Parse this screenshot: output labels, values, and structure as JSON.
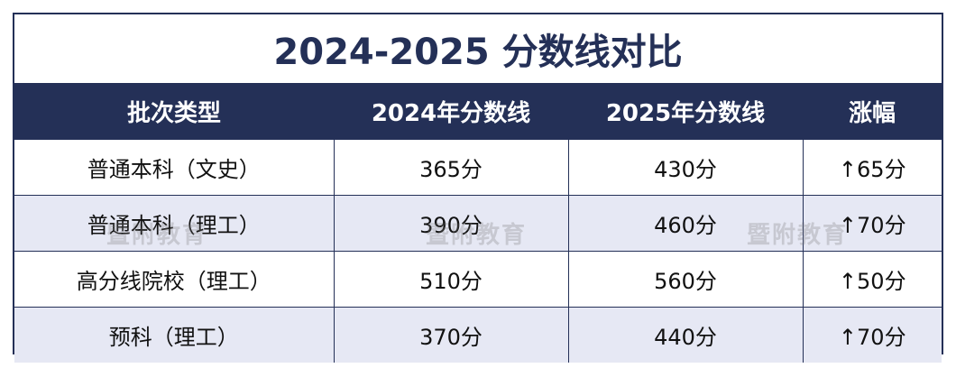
{
  "table": {
    "title": "2024-2025 分数线对比",
    "header": [
      "批次类型",
      "2024年分数线",
      "2025年分数线",
      "涨幅"
    ],
    "rows": [
      [
        "普通本科（文史）",
        "365分",
        "430分",
        "↑65分"
      ],
      [
        "普通本科（理工）",
        "390分",
        "460分",
        "↑70分"
      ],
      [
        "高分线院校（理工）",
        "510分",
        "560分",
        "↑50分"
      ],
      [
        "预科（理工）",
        "370分",
        "440分",
        "↑70分"
      ]
    ],
    "watermark": "暨附教育"
  }
}
